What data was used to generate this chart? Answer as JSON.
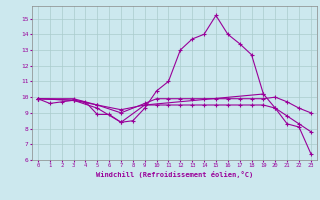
{
  "xlabel": "Windchill (Refroidissement éolien,°C)",
  "xlim": [
    -0.5,
    23.5
  ],
  "ylim": [
    6,
    15.8
  ],
  "yticks": [
    6,
    7,
    8,
    9,
    10,
    11,
    12,
    13,
    14,
    15
  ],
  "xticks": [
    0,
    1,
    2,
    3,
    4,
    5,
    6,
    7,
    8,
    9,
    10,
    11,
    12,
    13,
    14,
    15,
    16,
    17,
    18,
    19,
    20,
    21,
    22,
    23
  ],
  "background_color": "#cce8ee",
  "grid_color": "#aacccc",
  "line_color": "#990099",
  "lines": [
    {
      "x": [
        0,
        1,
        2,
        3,
        4,
        5,
        6,
        7,
        8,
        9,
        10,
        11,
        12,
        13,
        14,
        15,
        16,
        17,
        18,
        19
      ],
      "y": [
        9.9,
        9.6,
        9.7,
        9.8,
        9.7,
        8.9,
        8.9,
        8.4,
        8.5,
        9.3,
        10.4,
        11.0,
        13.0,
        13.7,
        14.0,
        15.2,
        14.0,
        13.4,
        12.7,
        10.2
      ]
    },
    {
      "x": [
        0,
        3,
        5,
        7,
        9,
        19,
        20,
        21,
        22,
        23
      ],
      "y": [
        9.9,
        9.8,
        9.3,
        8.4,
        9.5,
        10.2,
        9.3,
        8.3,
        8.1,
        6.4
      ]
    },
    {
      "x": [
        0,
        3,
        5,
        7,
        9,
        10,
        11,
        12,
        13,
        14,
        15,
        16,
        17,
        18,
        19,
        20,
        21,
        22,
        23
      ],
      "y": [
        9.9,
        9.9,
        9.5,
        9.0,
        9.6,
        9.9,
        9.9,
        9.9,
        9.9,
        9.9,
        9.9,
        9.9,
        9.9,
        9.9,
        9.9,
        10.0,
        9.7,
        9.3,
        9.0
      ]
    },
    {
      "x": [
        0,
        3,
        5,
        7,
        9,
        10,
        11,
        12,
        13,
        14,
        15,
        16,
        17,
        18,
        19,
        20,
        21,
        22,
        23
      ],
      "y": [
        9.9,
        9.8,
        9.5,
        9.2,
        9.5,
        9.5,
        9.5,
        9.5,
        9.5,
        9.5,
        9.5,
        9.5,
        9.5,
        9.5,
        9.5,
        9.3,
        8.8,
        8.3,
        7.8
      ]
    }
  ]
}
